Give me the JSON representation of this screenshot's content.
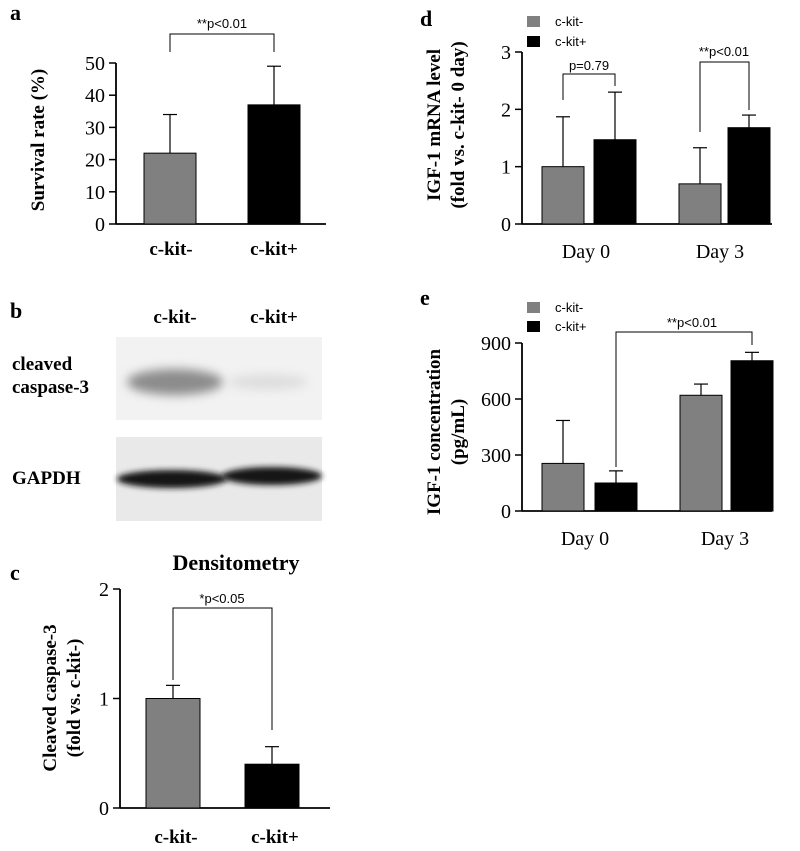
{
  "panels": {
    "a": "a",
    "b": "b",
    "c": "c",
    "d": "d",
    "e": "e"
  },
  "colors": {
    "gray": "#808080",
    "black": "#000000"
  },
  "blot": {
    "lane_labels": [
      "c-kit-",
      "c-kit+"
    ],
    "row1_label_line1": "cleaved",
    "row1_label_line2": "caspase-3",
    "row2_label": "GAPDH"
  },
  "chart_data": [
    {
      "id": "a",
      "type": "bar",
      "categories": [
        "c-kit-",
        "c-kit+"
      ],
      "values": [
        22,
        37
      ],
      "errors": [
        12,
        12
      ],
      "ylabel": "Survival rate (%)",
      "ylim": [
        0,
        50
      ],
      "yticks": [
        0,
        10,
        20,
        30,
        40,
        50
      ],
      "bar_colors": [
        "#808080",
        "#000000"
      ],
      "annotations": [
        {
          "text": "**p<0.01",
          "between": [
            0,
            1
          ]
        }
      ]
    },
    {
      "id": "c",
      "type": "bar",
      "title": "Densitometry",
      "categories": [
        "c-kit-",
        "c-kit+"
      ],
      "values": [
        1.0,
        0.4
      ],
      "errors": [
        0.12,
        0.16
      ],
      "ylabel_line1": "Cleaved caspase-3",
      "ylabel_line2": "(fold vs. c-kit-)",
      "ylim": [
        0,
        2
      ],
      "yticks": [
        0,
        1,
        2
      ],
      "bar_colors": [
        "#808080",
        "#000000"
      ],
      "annotations": [
        {
          "text": "*p<0.05",
          "between": [
            0,
            1
          ]
        }
      ]
    },
    {
      "id": "d",
      "type": "bar",
      "categories": [
        "Day 0",
        "Day 3"
      ],
      "series": [
        {
          "name": "c-kit-",
          "values": [
            1.0,
            0.7
          ],
          "errors": [
            0.87,
            0.63
          ],
          "color": "#808080"
        },
        {
          "name": "c-kit+",
          "values": [
            1.47,
            1.68
          ],
          "errors": [
            0.83,
            0.22
          ],
          "color": "#000000"
        }
      ],
      "ylabel_line1": "IGF-1 mRNA level",
      "ylabel_line2": "(fold vs. c-kit- 0 day)",
      "ylim": [
        0,
        3
      ],
      "yticks": [
        0,
        1,
        2,
        3
      ],
      "legend": "top-left",
      "annotations": [
        {
          "text": "p=0.79",
          "group": 0
        },
        {
          "text": "**p<0.01",
          "group": 1
        }
      ]
    },
    {
      "id": "e",
      "type": "bar",
      "categories": [
        "Day 0",
        "Day 3"
      ],
      "series": [
        {
          "name": "c-kit-",
          "values": [
            255,
            620
          ],
          "errors": [
            230,
            60
          ],
          "color": "#808080"
        },
        {
          "name": "c-kit+",
          "values": [
            150,
            805
          ],
          "errors": [
            65,
            45
          ],
          "color": "#000000"
        }
      ],
      "ylabel_line1": "IGF-1 concentration",
      "ylabel_line2": "(pg/mL)",
      "ylim": [
        0,
        900
      ],
      "yticks": [
        0,
        300,
        600,
        900
      ],
      "legend": "top-left",
      "annotations": [
        {
          "text": "**p<0.01",
          "cross": true
        }
      ]
    }
  ]
}
